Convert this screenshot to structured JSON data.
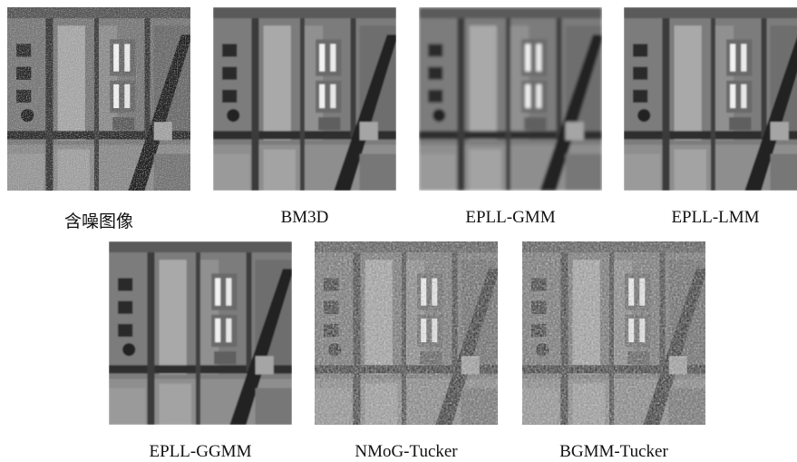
{
  "panels": [
    {
      "caption": "含噪图像"
    },
    {
      "caption": "BM3D"
    },
    {
      "caption": "EPLL-GMM"
    },
    {
      "caption": "EPLL-LMM"
    },
    {
      "caption": "EPLL-GGMM"
    },
    {
      "caption": "NMoG-Tucker"
    },
    {
      "caption": "BGMM-Tucker"
    }
  ]
}
